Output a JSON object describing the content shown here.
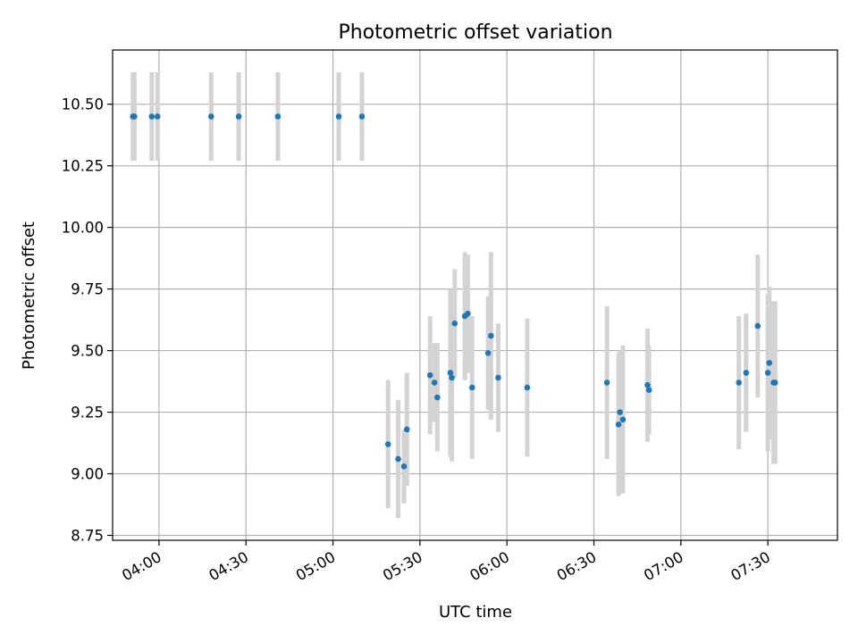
{
  "chart_data": {
    "type": "scatter",
    "title": "Photometric offset variation",
    "xlabel": "UTC time",
    "ylabel": "Photometric offset",
    "xlim": [
      "03:44",
      "07:54"
    ],
    "ylim": [
      8.73,
      10.72
    ],
    "x_ticks": [
      "04:00",
      "04:30",
      "05:00",
      "05:30",
      "06:00",
      "06:30",
      "07:00",
      "07:30"
    ],
    "y_ticks": [
      "8.75",
      "9.00",
      "9.25",
      "9.50",
      "9.75",
      "10.00",
      "10.25",
      "10.50"
    ],
    "grid": true,
    "marker_color": "#1f77b4",
    "errorbar_color": "#d3d3d3",
    "points": [
      {
        "time": "03:51:00",
        "offset": 10.45,
        "err": 0.18
      },
      {
        "time": "03:51:30",
        "offset": 10.45,
        "err": 0.18
      },
      {
        "time": "03:57:30",
        "offset": 10.45,
        "err": 0.18
      },
      {
        "time": "03:59:30",
        "offset": 10.45,
        "err": 0.18
      },
      {
        "time": "04:18:00",
        "offset": 10.45,
        "err": 0.18
      },
      {
        "time": "04:27:30",
        "offset": 10.45,
        "err": 0.18
      },
      {
        "time": "04:41:00",
        "offset": 10.45,
        "err": 0.18
      },
      {
        "time": "05:02:00",
        "offset": 10.45,
        "err": 0.18
      },
      {
        "time": "05:10:00",
        "offset": 10.45,
        "err": 0.18
      },
      {
        "time": "05:19:00",
        "offset": 9.12,
        "err": 0.26
      },
      {
        "time": "05:22:30",
        "offset": 9.06,
        "err": 0.24
      },
      {
        "time": "05:24:30",
        "offset": 9.03,
        "err": 0.15
      },
      {
        "time": "05:25:30",
        "offset": 9.18,
        "err": 0.23
      },
      {
        "time": "05:33:30",
        "offset": 9.4,
        "err": 0.24
      },
      {
        "time": "05:35:00",
        "offset": 9.37,
        "err": 0.16
      },
      {
        "time": "05:36:00",
        "offset": 9.31,
        "err": 0.22
      },
      {
        "time": "05:40:30",
        "offset": 9.41,
        "err": 0.34
      },
      {
        "time": "05:41:00",
        "offset": 9.39,
        "err": 0.34
      },
      {
        "time": "05:42:00",
        "offset": 9.61,
        "err": 0.22
      },
      {
        "time": "05:45:30",
        "offset": 9.64,
        "err": 0.26
      },
      {
        "time": "05:46:30",
        "offset": 9.65,
        "err": 0.24
      },
      {
        "time": "05:48:00",
        "offset": 9.35,
        "err": 0.29
      },
      {
        "time": "05:53:30",
        "offset": 9.49,
        "err": 0.23
      },
      {
        "time": "05:54:30",
        "offset": 9.56,
        "err": 0.34
      },
      {
        "time": "05:57:00",
        "offset": 9.39,
        "err": 0.22
      },
      {
        "time": "06:07:00",
        "offset": 9.35,
        "err": 0.28
      },
      {
        "time": "06:34:30",
        "offset": 9.37,
        "err": 0.31
      },
      {
        "time": "06:38:30",
        "offset": 9.2,
        "err": 0.29
      },
      {
        "time": "06:39:00",
        "offset": 9.25,
        "err": 0.25
      },
      {
        "time": "06:40:00",
        "offset": 9.22,
        "err": 0.3
      },
      {
        "time": "06:48:30",
        "offset": 9.36,
        "err": 0.23
      },
      {
        "time": "06:49:00",
        "offset": 9.34,
        "err": 0.18
      },
      {
        "time": "07:20:00",
        "offset": 9.37,
        "err": 0.27
      },
      {
        "time": "07:22:30",
        "offset": 9.41,
        "err": 0.24
      },
      {
        "time": "07:26:30",
        "offset": 9.6,
        "err": 0.29
      },
      {
        "time": "07:30:00",
        "offset": 9.41,
        "err": 0.32
      },
      {
        "time": "07:30:30",
        "offset": 9.45,
        "err": 0.31
      },
      {
        "time": "07:32:00",
        "offset": 9.37,
        "err": 0.33
      },
      {
        "time": "07:32:30",
        "offset": 9.37,
        "err": 0.33
      }
    ]
  }
}
